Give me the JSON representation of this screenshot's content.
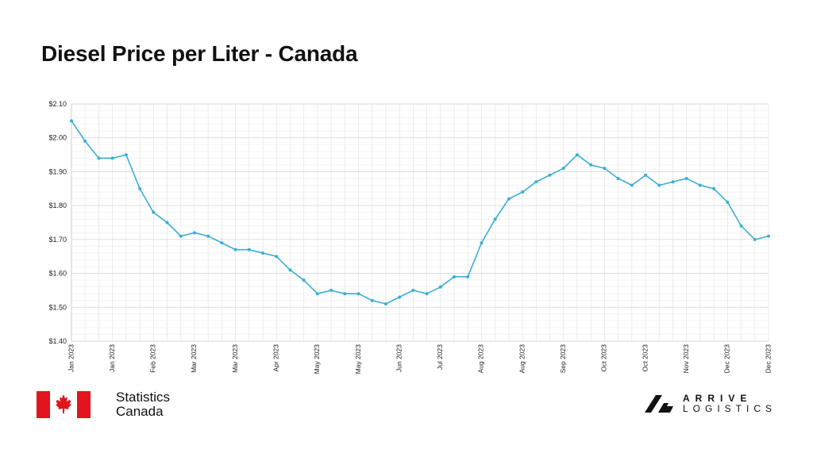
{
  "colors": {
    "line": "#3aaed8",
    "grid": "#e6e6e6",
    "flag_red": "#e3141c",
    "text": "#111111"
  },
  "footer": {
    "source_line1": "Statistics",
    "source_line2": "Canada",
    "brand_line1": "ARRIVE",
    "brand_line2": "LOGISTICS",
    "icons": [
      "canada-flag-icon",
      "arrive-logo-icon"
    ]
  },
  "chart_data": {
    "type": "line",
    "title": "Diesel Price per Liter - Canada",
    "xlabel": "",
    "ylabel": "",
    "ylim": [
      1.4,
      2.1
    ],
    "y_ticks": [
      "$1.40",
      "$1.50",
      "$1.60",
      "$1.70",
      "$1.80",
      "$1.90",
      "$2.00",
      "$2.10"
    ],
    "grid": true,
    "x_tick_labels": [
      "Jan 2023",
      "Jan 2023",
      "Feb 2023",
      "Mar 2023",
      "Mar 2023",
      "Apr 2023",
      "May 2023",
      "May 2023",
      "Jun 2023",
      "Jul 2023",
      "Aug 2023",
      "Aug 2023",
      "Sep 2023",
      "Oct 2023",
      "Oct 2023",
      "Nov 2023",
      "Dec 2023",
      "Dec 2023"
    ],
    "series": [
      {
        "values": [
          2.05,
          1.99,
          1.94,
          1.94,
          1.95,
          1.85,
          1.78,
          1.75,
          1.71,
          1.72,
          1.71,
          1.69,
          1.67,
          1.67,
          1.66,
          1.65,
          1.61,
          1.58,
          1.54,
          1.55,
          1.54,
          1.54,
          1.52,
          1.51,
          1.53,
          1.55,
          1.54,
          1.56,
          1.59,
          1.59,
          1.69,
          1.76,
          1.82,
          1.84,
          1.87,
          1.89,
          1.91,
          1.95,
          1.92,
          1.91,
          1.88,
          1.86,
          1.89,
          1.86,
          1.87,
          1.88,
          1.86,
          1.85,
          1.81,
          1.74,
          1.7,
          1.71
        ]
      }
    ]
  }
}
